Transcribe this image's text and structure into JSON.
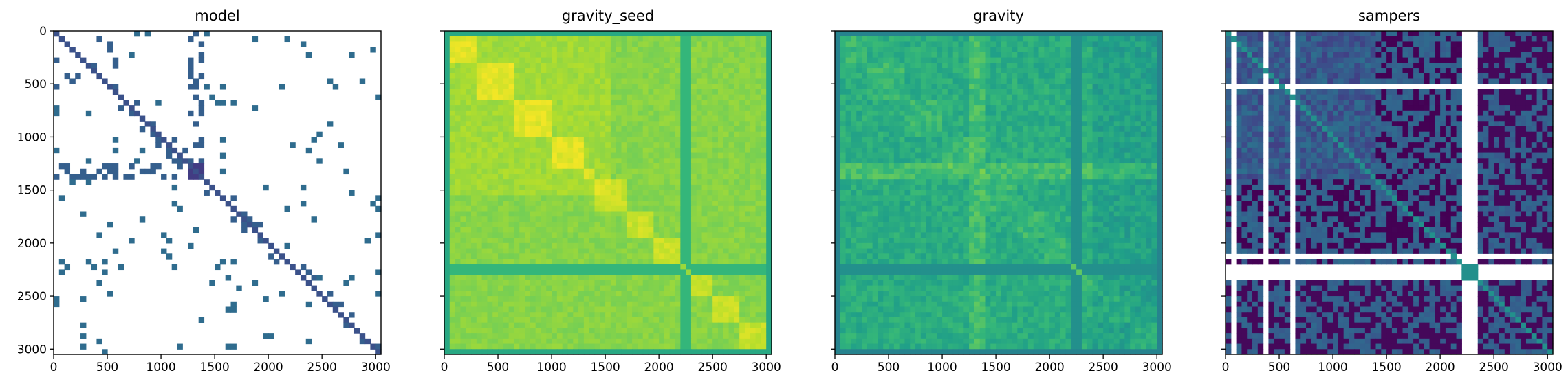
{
  "chart_data": [
    {
      "type": "heatmap",
      "title": "model",
      "pattern": "sparse",
      "x_ticks": [
        "0",
        "500",
        "1000",
        "1500",
        "2000",
        "2500",
        "3000"
      ],
      "y_ticks": [
        "0",
        "500",
        "1000",
        "1500",
        "2000",
        "2500",
        "3000"
      ],
      "xlim": [
        0,
        3050
      ],
      "ylim": [
        3050,
        0
      ],
      "show_y_tick_labels": true,
      "colormap": "viridis"
    },
    {
      "type": "heatmap",
      "title": "gravity_seed",
      "pattern": "bright",
      "x_ticks": [
        "0",
        "500",
        "1000",
        "1500",
        "2000",
        "2500",
        "3000"
      ],
      "y_ticks": [
        "0",
        "500",
        "1000",
        "1500",
        "2000",
        "2500",
        "3000"
      ],
      "xlim": [
        0,
        3050
      ],
      "ylim": [
        3050,
        0
      ],
      "show_y_tick_labels": false,
      "colormap": "viridis"
    },
    {
      "type": "heatmap",
      "title": "gravity",
      "pattern": "medium",
      "x_ticks": [
        "0",
        "500",
        "1000",
        "1500",
        "2000",
        "2500",
        "3000"
      ],
      "y_ticks": [
        "0",
        "500",
        "1000",
        "1500",
        "2000",
        "2500",
        "3000"
      ],
      "xlim": [
        0,
        3050
      ],
      "ylim": [
        3050,
        0
      ],
      "show_y_tick_labels": false,
      "colormap": "viridis"
    },
    {
      "type": "heatmap",
      "title": "sampers",
      "pattern": "dark",
      "x_ticks": [
        "0",
        "500",
        "1000",
        "1500",
        "2000",
        "2500",
        "3000"
      ],
      "y_ticks": [
        "0",
        "500",
        "1000",
        "1500",
        "2000",
        "2500",
        "3000"
      ],
      "xlim": [
        0,
        3050
      ],
      "ylim": [
        3050,
        0
      ],
      "show_y_tick_labels": false,
      "colormap": "viridis"
    }
  ]
}
